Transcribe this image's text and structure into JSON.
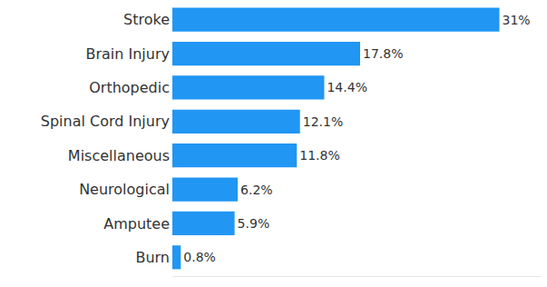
{
  "chart_data": {
    "type": "bar",
    "orientation": "horizontal",
    "categories": [
      "Stroke",
      "Brain Injury",
      "Orthopedic",
      "Spinal Cord Injury",
      "Miscellaneous",
      "Neurological",
      "Amputee",
      "Burn"
    ],
    "values": [
      31,
      17.8,
      14.4,
      12.1,
      11.8,
      6.2,
      5.9,
      0.8
    ],
    "value_labels": [
      "31%",
      "17.8%",
      "14.4%",
      "12.1%",
      "11.8%",
      "6.2%",
      "5.9%",
      "0.8%"
    ],
    "color": "#2196f3",
    "xlim": [
      0,
      35
    ],
    "grid": false,
    "data_labels": true,
    "tick_labels": "y"
  }
}
